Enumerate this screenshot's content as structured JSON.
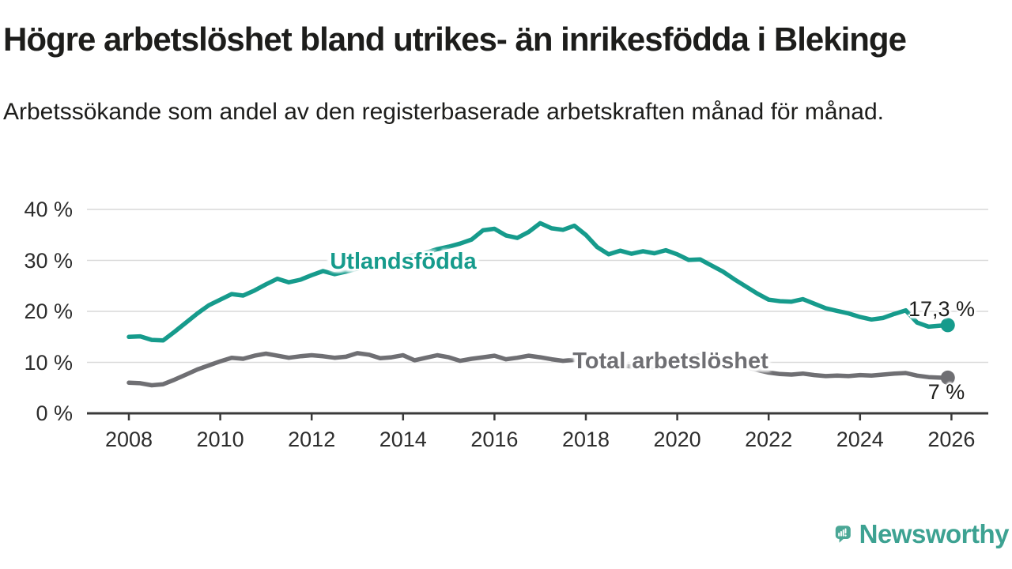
{
  "header": {
    "title": "Högre arbetslöshet bland utrikes- än inrikesfödda i Blekinge",
    "subtitle": "Arbetssökande som andel av den registerbaserade arbetskraften månad för månad."
  },
  "chart_data": {
    "type": "line",
    "title": "Högre arbetslöshet bland utrikes- än inrikesfödda i Blekinge",
    "xlabel": "",
    "ylabel": "",
    "grid": true,
    "x_axis": {
      "ticks": [
        "2008",
        "2010",
        "2012",
        "2014",
        "2016",
        "2018",
        "2020",
        "2022",
        "2024",
        "2026"
      ],
      "tick_values": [
        2008,
        2010,
        2012,
        2014,
        2016,
        2018,
        2020,
        2022,
        2024,
        2026
      ],
      "range": [
        2007.1,
        2026.8
      ]
    },
    "y_axis": {
      "ticks": [
        "0 %",
        "10 %",
        "20 %",
        "30 %",
        "40 %"
      ],
      "tick_values": [
        0,
        10,
        20,
        30,
        40
      ],
      "range": [
        0,
        40
      ]
    },
    "x": [
      2008.0,
      2008.25,
      2008.5,
      2008.75,
      2009.0,
      2009.25,
      2009.5,
      2009.75,
      2010.0,
      2010.25,
      2010.5,
      2010.75,
      2011.0,
      2011.25,
      2011.5,
      2011.75,
      2012.0,
      2012.25,
      2012.5,
      2012.75,
      2013.0,
      2013.25,
      2013.5,
      2013.75,
      2014.0,
      2014.25,
      2014.5,
      2014.75,
      2015.0,
      2015.25,
      2015.5,
      2015.75,
      2016.0,
      2016.25,
      2016.5,
      2016.75,
      2017.0,
      2017.25,
      2017.5,
      2017.75,
      2018.0,
      2018.25,
      2018.5,
      2018.75,
      2019.0,
      2019.25,
      2019.5,
      2019.75,
      2020.0,
      2020.25,
      2020.5,
      2020.75,
      2021.0,
      2021.25,
      2021.5,
      2021.75,
      2022.0,
      2022.25,
      2022.5,
      2022.75,
      2023.0,
      2023.25,
      2023.5,
      2023.75,
      2024.0,
      2024.25,
      2024.5,
      2024.75,
      2025.0,
      2025.25,
      2025.5,
      2025.75,
      2025.92
    ],
    "series": [
      {
        "name": "Utlandsfödda",
        "color": "#169b8c",
        "end_label": "17,3 %",
        "values": [
          15.0,
          15.1,
          14.4,
          14.3,
          16.0,
          17.8,
          19.6,
          21.2,
          22.3,
          23.4,
          23.1,
          24.1,
          25.3,
          26.4,
          25.7,
          26.2,
          27.1,
          27.9,
          27.3,
          27.8,
          28.4,
          29.0,
          29.4,
          29.9,
          30.6,
          31.1,
          31.5,
          32.2,
          32.7,
          33.3,
          34.1,
          35.9,
          36.2,
          34.9,
          34.4,
          35.6,
          37.3,
          36.3,
          36.0,
          36.8,
          35.0,
          32.6,
          31.2,
          31.9,
          31.3,
          31.8,
          31.4,
          32.0,
          31.2,
          30.1,
          30.2,
          29.0,
          27.8,
          26.3,
          24.9,
          23.5,
          22.3,
          22.0,
          21.9,
          22.4,
          21.5,
          20.6,
          20.1,
          19.6,
          18.9,
          18.4,
          18.7,
          19.5,
          20.2,
          17.8,
          17.0,
          17.2,
          17.3
        ]
      },
      {
        "name": "Total arbetslöshet",
        "color": "#6f6f73",
        "end_label": "7 %",
        "values": [
          6.0,
          5.9,
          5.5,
          5.7,
          6.6,
          7.6,
          8.6,
          9.4,
          10.2,
          10.9,
          10.7,
          11.3,
          11.7,
          11.3,
          10.9,
          11.2,
          11.4,
          11.2,
          10.9,
          11.1,
          11.8,
          11.5,
          10.8,
          11.0,
          11.4,
          10.4,
          10.9,
          11.4,
          11.0,
          10.3,
          10.7,
          11.0,
          11.3,
          10.6,
          10.9,
          11.3,
          11.0,
          10.6,
          10.3,
          10.5,
          10.2,
          9.8,
          9.6,
          9.4,
          9.2,
          9.1,
          9.0,
          9.2,
          9.5,
          10.9,
          11.4,
          11.0,
          10.4,
          9.8,
          9.1,
          8.5,
          8.0,
          7.7,
          7.6,
          7.8,
          7.5,
          7.3,
          7.4,
          7.3,
          7.5,
          7.4,
          7.6,
          7.8,
          7.9,
          7.4,
          7.1,
          7.0,
          7.0
        ]
      }
    ],
    "legend_position": "inline-labels"
  },
  "footer": {
    "brand": "Newsworthy",
    "brand_color": "#3da292",
    "icon_color": "#4ba796"
  }
}
